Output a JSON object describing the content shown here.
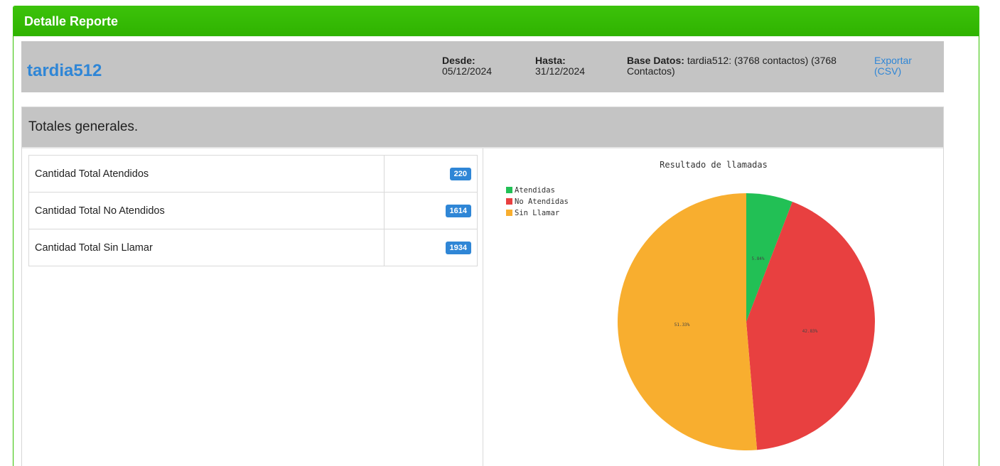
{
  "panel": {
    "title": "Detalle Reporte"
  },
  "report": {
    "db_name": "tardia512",
    "desde_label": "Desde:",
    "desde_value": "05/12/2024",
    "hasta_label": "Hasta:",
    "hasta_value": "31/12/2024",
    "base_label": "Base Datos:",
    "base_value": "tardia512: (3768 contactos) (3768 Contactos)",
    "export_label": "Exportar (CSV)",
    "link_color": "#2f86d6"
  },
  "totals": {
    "title": "Totales generales.",
    "rows": [
      {
        "label": "Cantidad Total Atendidos",
        "value": "220"
      },
      {
        "label": "Cantidad Total No Atendidos",
        "value": "1614"
      },
      {
        "label": "Cantidad Total Sin Llamar",
        "value": "1934"
      }
    ],
    "badge_color": "#2f86d6"
  },
  "chart_data": {
    "type": "pie",
    "title": "Resultado de llamadas",
    "legend_position": "top-left",
    "categories": [
      "Atendidas",
      "No Atendidas",
      "Sin Llamar"
    ],
    "values": [
      220,
      1614,
      1934
    ],
    "labels": [
      "5.84%",
      "42.83%",
      "51.33%"
    ],
    "colors": [
      "#22c055",
      "#e84040",
      "#f8ae2f"
    ]
  }
}
